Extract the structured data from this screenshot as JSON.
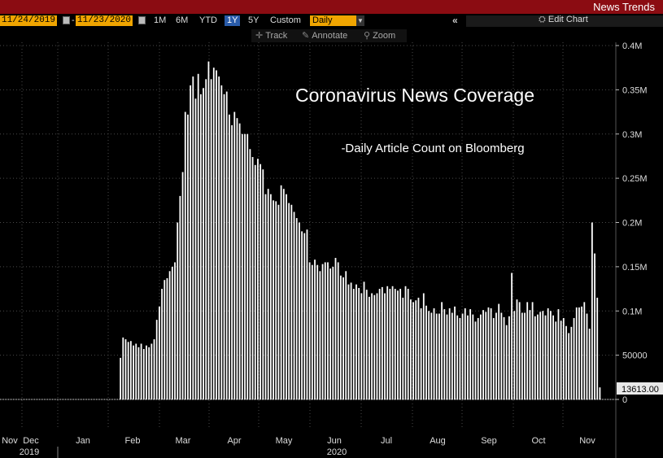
{
  "app_title": "News Trends",
  "toolbar": {
    "start_date": "11/24/2019",
    "end_date": "11/23/2020",
    "date_separator": "-",
    "ranges": [
      "1M",
      "6M",
      "YTD",
      "1Y",
      "5Y",
      "Custom"
    ],
    "active_range": "1Y",
    "frequency": "Daily",
    "collapse_label": "«",
    "edit_chart_label": "Edit Chart"
  },
  "subtoolbar": {
    "track_label": "Track",
    "annotate_label": "Annotate",
    "zoom_label": "Zoom"
  },
  "chart_data": {
    "type": "bar",
    "title": "Coronavirus News Coverage",
    "subtitle": "-Daily Article Count on Bloomberg",
    "ylim": [
      0,
      400000
    ],
    "y_ticks": [
      0,
      50000,
      100000,
      150000,
      200000,
      250000,
      300000,
      350000,
      400000
    ],
    "y_tick_labels": [
      "0",
      "50000",
      "0.1M",
      "0.15M",
      "0.2M",
      "0.25M",
      "0.3M",
      "0.35M",
      "0.4M"
    ],
    "last_value_label": "13613.00",
    "x_month_labels": [
      "Nov",
      "Dec",
      "Jan",
      "Feb",
      "Mar",
      "Apr",
      "May",
      "Jun",
      "Jul",
      "Aug",
      "Sep",
      "Oct",
      "Nov"
    ],
    "x_year_labels": [
      "2019",
      "2020"
    ],
    "grid": true,
    "series": [
      {
        "values": [
          0,
          0,
          0,
          0,
          0,
          0,
          0,
          0,
          0,
          0,
          0,
          0,
          0,
          0,
          0,
          0,
          0,
          0,
          0,
          0,
          0,
          0,
          0,
          0,
          0,
          0,
          0,
          0,
          0,
          0,
          0,
          0,
          0,
          0,
          0,
          0,
          0,
          0,
          0,
          0,
          0,
          0,
          0,
          0,
          0,
          0,
          47000,
          70000,
          68000,
          65000,
          66000,
          61000,
          63000,
          59000,
          63000,
          57000,
          61000,
          59000,
          63000,
          68000,
          90000,
          105000,
          125000,
          135000,
          137000,
          145000,
          150000,
          155000,
          200000,
          230000,
          257000,
          325000,
          322000,
          355000,
          365000,
          340000,
          368000,
          345000,
          352000,
          362000,
          382000,
          362000,
          375000,
          372000,
          365000,
          355000,
          345000,
          348000,
          322000,
          310000,
          325000,
          318000,
          312000,
          300000,
          300000,
          300000,
          283000,
          274000,
          265000,
          272000,
          266000,
          260000,
          232000,
          238000,
          232000,
          225000,
          224000,
          220000,
          242000,
          238000,
          232000,
          222000,
          220000,
          212000,
          205000,
          200000,
          190000,
          188000,
          192000,
          155000,
          152000,
          158000,
          152000,
          145000,
          153000,
          155000,
          155000,
          148000,
          150000,
          160000,
          155000,
          140000,
          138000,
          145000,
          130000,
          132000,
          125000,
          130000,
          126000,
          120000,
          133000,
          124000,
          116000,
          120000,
          118000,
          120000,
          125000,
          127000,
          120000,
          128000,
          125000,
          128000,
          125000,
          123000,
          125000,
          115000,
          128000,
          125000,
          113000,
          110000,
          112000,
          115000,
          103000,
          120000,
          106000,
          100000,
          98000,
          103000,
          97000,
          97000,
          110000,
          102000,
          96000,
          103000,
          98000,
          105000,
          95000,
          92000,
          97000,
          103000,
          95000,
          102000,
          96000,
          88000,
          92000,
          96000,
          101000,
          99000,
          104000,
          103000,
          92000,
          98000,
          108000,
          98000,
          93000,
          84000,
          94000,
          143000,
          100000,
          113000,
          110000,
          98000,
          98000,
          110000,
          101000,
          110000,
          94000,
          96000,
          99000,
          100000,
          95000,
          103000,
          100000,
          95000,
          88000,
          102000,
          89000,
          92000,
          83000,
          75000,
          82000,
          92000,
          104000,
          104000,
          105000,
          110000,
          97000,
          80000,
          200000,
          165000,
          115000,
          13613
        ]
      }
    ]
  }
}
